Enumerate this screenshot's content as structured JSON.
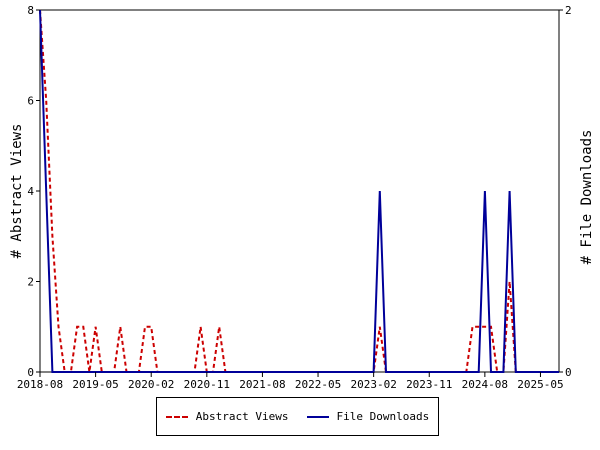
{
  "chart_data": {
    "type": "line",
    "ylabel": "# Abstract Views",
    "y2label": "# File Downloads",
    "x_ticks": [
      "2018-08",
      "2019-05",
      "2020-02",
      "2020-11",
      "2021-08",
      "2022-05",
      "2023-02",
      "2023-11",
      "2024-08",
      "2025-05"
    ],
    "xlim": [
      "2018-08",
      "2025-08"
    ],
    "ylim": [
      0,
      8
    ],
    "y_ticks": [
      0,
      2,
      4,
      6,
      8
    ],
    "y2lim": [
      0,
      2
    ],
    "y2_ticks": [
      0,
      2
    ],
    "grid": false,
    "legend_position": "bottom",
    "series": [
      {
        "name": "Abstract Views",
        "axis": "left",
        "color": "#cc0000",
        "style": "dashed",
        "points": [
          [
            "2018-08",
            8
          ],
          [
            "2018-09",
            6
          ],
          [
            "2018-10",
            3
          ],
          [
            "2018-11",
            1
          ],
          [
            "2018-12",
            0
          ],
          [
            "2019-01",
            0
          ],
          [
            "2019-02",
            1
          ],
          [
            "2019-03",
            1
          ],
          [
            "2019-04",
            0
          ],
          [
            "2019-05",
            1
          ],
          [
            "2019-06",
            0
          ],
          [
            "2019-08",
            0
          ],
          [
            "2019-09",
            1
          ],
          [
            "2019-10",
            0
          ],
          [
            "2019-12",
            0
          ],
          [
            "2020-01",
            1
          ],
          [
            "2020-02",
            1
          ],
          [
            "2020-03",
            0
          ],
          [
            "2020-09",
            0
          ],
          [
            "2020-10",
            1
          ],
          [
            "2020-11",
            0
          ],
          [
            "2020-12",
            0
          ],
          [
            "2021-01",
            1
          ],
          [
            "2021-02",
            0
          ],
          [
            "2023-02",
            0
          ],
          [
            "2023-03",
            1
          ],
          [
            "2023-04",
            0
          ],
          [
            "2024-05",
            0
          ],
          [
            "2024-06",
            1
          ],
          [
            "2024-07",
            1
          ],
          [
            "2024-08",
            1
          ],
          [
            "2024-09",
            1
          ],
          [
            "2024-10",
            0
          ],
          [
            "2024-11",
            0
          ],
          [
            "2024-12",
            2
          ],
          [
            "2025-01",
            0
          ],
          [
            "2025-08",
            0
          ]
        ]
      },
      {
        "name": "File Downloads",
        "axis": "right",
        "color": "#000099",
        "style": "solid",
        "points": [
          [
            "2018-08",
            2
          ],
          [
            "2018-09",
            1
          ],
          [
            "2018-10",
            0
          ],
          [
            "2023-02",
            0
          ],
          [
            "2023-03",
            1
          ],
          [
            "2023-04",
            0
          ],
          [
            "2024-07",
            0
          ],
          [
            "2024-08",
            1
          ],
          [
            "2024-09",
            0
          ],
          [
            "2024-11",
            0
          ],
          [
            "2024-12",
            1
          ],
          [
            "2025-01",
            0
          ],
          [
            "2025-08",
            0
          ]
        ]
      }
    ]
  }
}
